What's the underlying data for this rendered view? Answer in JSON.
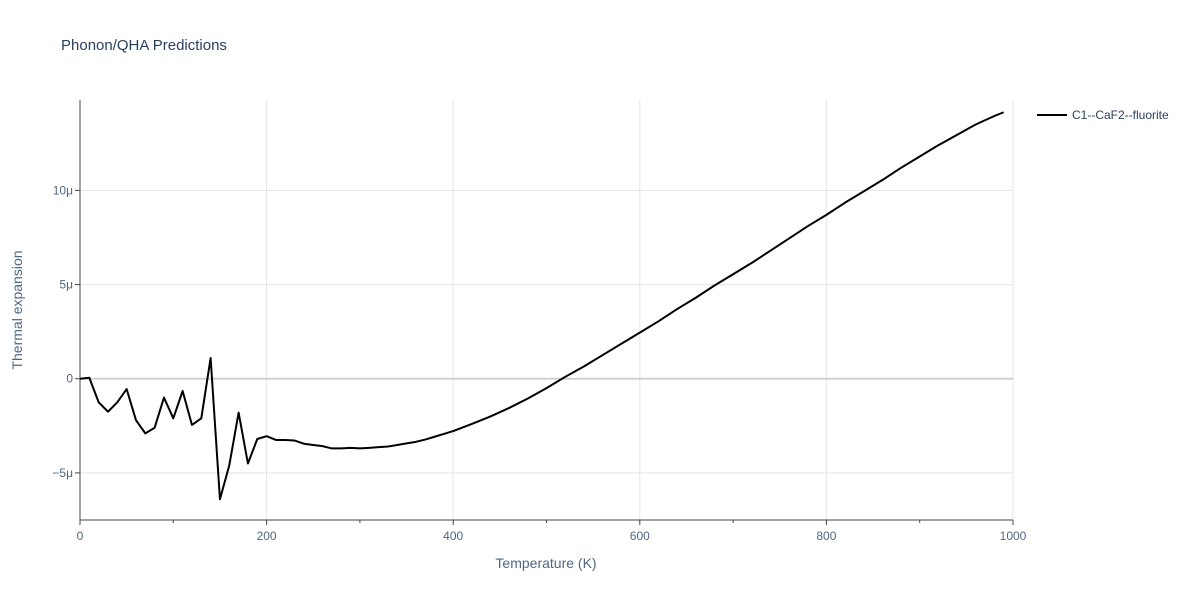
{
  "chart_data": {
    "type": "line",
    "title": "Phonon/QHA Predictions",
    "xlabel": "Temperature (K)",
    "ylabel": "Thermal expansion",
    "xlim": [
      0,
      1000
    ],
    "ylim": [
      -7.5e-06,
      1.48e-05
    ],
    "x_ticks": [
      0,
      200,
      400,
      600,
      800,
      1000
    ],
    "x_tick_labels": [
      "0",
      "200",
      "400",
      "600",
      "800",
      "1000"
    ],
    "x_minor_ticks": [
      100,
      300,
      500,
      700,
      900
    ],
    "y_ticks": [
      -5e-06,
      0,
      5e-06,
      1e-05
    ],
    "y_tick_labels": [
      "−5μ",
      "0",
      "5μ",
      "10μ"
    ],
    "grid": true,
    "legend_position": "top-right",
    "series": [
      {
        "name": "C1--CaF2--fluorite",
        "color": "#000000",
        "x": [
          0,
          10,
          20,
          30,
          40,
          50,
          60,
          70,
          80,
          90,
          100,
          110,
          120,
          130,
          140,
          150,
          160,
          170,
          180,
          190,
          200,
          210,
          220,
          230,
          240,
          250,
          260,
          270,
          280,
          290,
          300,
          310,
          320,
          330,
          340,
          350,
          360,
          370,
          380,
          390,
          400,
          420,
          440,
          460,
          480,
          500,
          520,
          540,
          560,
          580,
          600,
          620,
          640,
          660,
          680,
          700,
          720,
          740,
          760,
          780,
          800,
          820,
          840,
          860,
          880,
          900,
          920,
          940,
          960,
          980,
          990
        ],
        "y": [
          0,
          5e-08,
          -1.25e-06,
          -1.75e-06,
          -1.25e-06,
          -5.5e-07,
          -2.2e-06,
          -2.9e-06,
          -2.6e-06,
          -1e-06,
          -2.1e-06,
          -6.5e-07,
          -2.45e-06,
          -2.1e-06,
          1.1e-06,
          -6.4e-06,
          -4.6e-06,
          -1.8e-06,
          -4.5e-06,
          -3.2e-06,
          -3.05e-06,
          -3.25e-06,
          -3.25e-06,
          -3.28e-06,
          -3.45e-06,
          -3.52e-06,
          -3.58e-06,
          -3.7e-06,
          -3.7e-06,
          -3.67e-06,
          -3.7e-06,
          -3.67e-06,
          -3.63e-06,
          -3.6e-06,
          -3.52e-06,
          -3.43e-06,
          -3.35e-06,
          -3.23e-06,
          -3.08e-06,
          -2.93e-06,
          -2.78e-06,
          -2.4e-06,
          -2e-06,
          -1.55e-06,
          -1.05e-06,
          -5e-07,
          1e-07,
          6.5e-07,
          1.25e-06,
          1.85e-06,
          2.45e-06,
          3.05e-06,
          3.7e-06,
          4.3e-06,
          4.95e-06,
          5.55e-06,
          6.15e-06,
          6.8e-06,
          7.45e-06,
          8.1e-06,
          8.7e-06,
          9.35e-06,
          9.95e-06,
          1.055e-05,
          1.12e-05,
          1.18e-05,
          1.24e-05,
          1.295e-05,
          1.35e-05,
          1.395e-05,
          1.415e-05
        ]
      }
    ]
  }
}
